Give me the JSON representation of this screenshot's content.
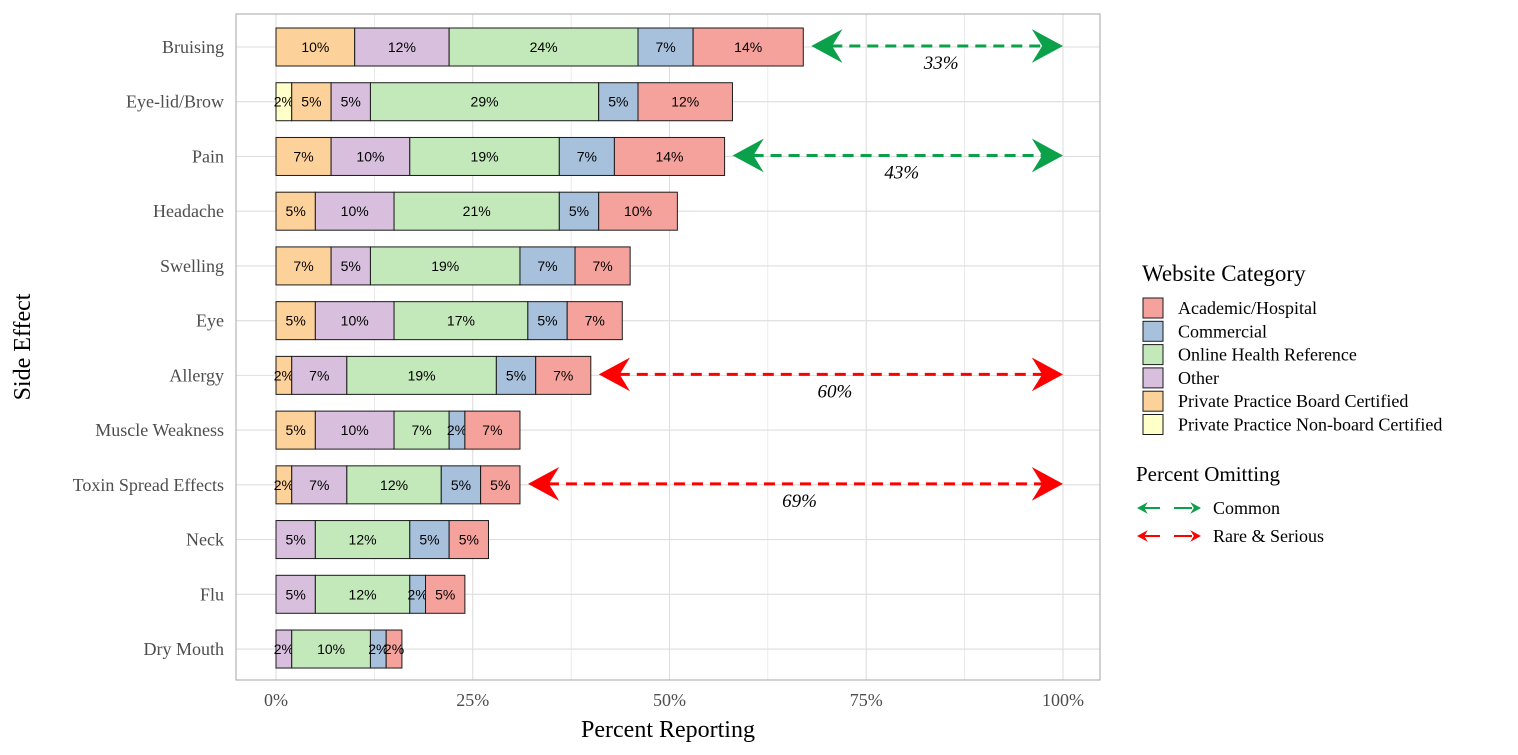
{
  "chart_data": {
    "type": "bar",
    "orientation": "horizontal",
    "stacked": true,
    "xlabel": "Percent Reporting",
    "ylabel": "Side Effect",
    "xlim": [
      0,
      100
    ],
    "xticks": [
      "0%",
      "25%",
      "50%",
      "75%",
      "100%"
    ],
    "grid": true,
    "categories": [
      "Bruising",
      "Eye-lid/Brow",
      "Pain",
      "Headache",
      "Swelling",
      "Eye",
      "Allergy",
      "Muscle Weakness",
      "Toxin Spread Effects",
      "Neck",
      "Flu",
      "Dry Mouth"
    ],
    "series": [
      {
        "name": "Academic/Hospital",
        "color": "#F6A29C",
        "values": [
          14,
          12,
          14,
          10,
          7,
          7,
          7,
          7,
          5,
          5,
          5,
          2
        ]
      },
      {
        "name": "Commercial",
        "color": "#A7C0DB",
        "values": [
          7,
          5,
          7,
          5,
          7,
          5,
          5,
          2,
          5,
          5,
          2,
          2
        ]
      },
      {
        "name": "Online Health Reference",
        "color": "#C3E8BA",
        "values": [
          24,
          29,
          19,
          21,
          19,
          17,
          19,
          7,
          12,
          12,
          12,
          10
        ]
      },
      {
        "name": "Other",
        "color": "#D7BFDD",
        "values": [
          12,
          5,
          10,
          10,
          5,
          10,
          7,
          10,
          7,
          5,
          5,
          2
        ]
      },
      {
        "name": "Private Practice Board Certified",
        "color": "#FDD29A",
        "values": [
          10,
          5,
          7,
          5,
          7,
          5,
          2,
          5,
          2,
          0,
          0,
          0
        ]
      },
      {
        "name": "Private Practice Non-board Certified",
        "color": "#FFFFC9",
        "values": [
          0,
          2,
          0,
          0,
          0,
          0,
          0,
          0,
          0,
          0,
          0,
          0
        ]
      }
    ],
    "legend": {
      "title": "Website Category",
      "placement": "right"
    },
    "omitting_legend": {
      "title": "Percent Omitting",
      "items": [
        {
          "name": "Common",
          "color": "#0BA04A"
        },
        {
          "name": "Rare & Serious",
          "color": "#FF0000"
        }
      ]
    },
    "annotations": [
      {
        "category": "Bruising",
        "from": 67,
        "to": 100,
        "label": "33%",
        "type": "Common"
      },
      {
        "category": "Pain",
        "from": 57,
        "to": 100,
        "label": "43%",
        "type": "Common"
      },
      {
        "category": "Allergy",
        "from": 40,
        "to": 100,
        "label": "60%",
        "type": "Rare & Serious"
      },
      {
        "category": "Toxin Spread Effects",
        "from": 31,
        "to": 100,
        "label": "69%",
        "type": "Rare & Serious"
      }
    ]
  }
}
